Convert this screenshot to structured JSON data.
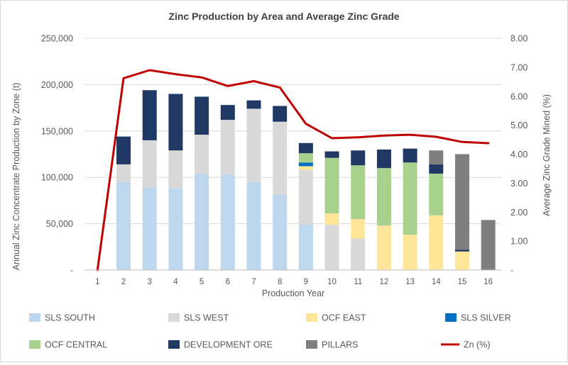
{
  "chart_data": {
    "type": "bar",
    "title": "Zinc Production by Area and Average Zinc Grade",
    "xlabel": "Production Year",
    "ylabel": "Annual Zinc Concentrate Production by Zone (t)",
    "y2label": "Average Zinc Grade Mined (%)",
    "categories": [
      "1",
      "2",
      "3",
      "4",
      "5",
      "6",
      "7",
      "8",
      "9",
      "10",
      "11",
      "12",
      "13",
      "14",
      "15",
      "16"
    ],
    "ylim": [
      0,
      250000
    ],
    "y2lim": [
      0,
      8
    ],
    "yticks": [
      "-",
      "50,000",
      "100,000",
      "150,000",
      "200,000",
      "250,000"
    ],
    "y2ticks": [
      "-",
      "1.00",
      "2.00",
      "3.00",
      "4.00",
      "5.00",
      "6.00",
      "7.00",
      "8.00"
    ],
    "grid": true,
    "legend_position": "bottom",
    "stacked": true,
    "series": [
      {
        "name": "SLS SOUTH",
        "color": "#BDD7EE",
        "values": [
          0,
          95000,
          89000,
          88000,
          104000,
          103000,
          95000,
          81000,
          49000,
          0,
          0,
          0,
          0,
          0,
          0,
          0
        ]
      },
      {
        "name": "SLS  WEST",
        "color": "#D9D9D9",
        "values": [
          0,
          19000,
          51000,
          41000,
          42000,
          59000,
          79000,
          79000,
          59000,
          49000,
          34000,
          0,
          0,
          0,
          0,
          0
        ]
      },
      {
        "name": "OCF  EAST",
        "color": "#FFE699",
        "values": [
          0,
          0,
          0,
          0,
          0,
          0,
          0,
          0,
          4000,
          12000,
          21000,
          48000,
          38000,
          59000,
          20000,
          0
        ]
      },
      {
        "name": "SLS  SILVER",
        "color": "#0070C0",
        "values": [
          0,
          0,
          0,
          0,
          0,
          0,
          0,
          0,
          4000,
          0,
          0,
          0,
          0,
          0,
          0,
          0
        ]
      },
      {
        "name": "OCF  CENTRAL",
        "color": "#A9D18E",
        "values": [
          0,
          0,
          0,
          0,
          0,
          0,
          0,
          0,
          10000,
          60000,
          58000,
          62000,
          78000,
          45000,
          0,
          0
        ]
      },
      {
        "name": "DEVELOPMENT ORE",
        "color": "#203864",
        "values": [
          0,
          30000,
          54000,
          61000,
          41000,
          16000,
          9000,
          17000,
          11000,
          7000,
          16000,
          20000,
          15000,
          10000,
          2000,
          0
        ]
      },
      {
        "name": "PILLARS",
        "color": "#7F7F7F",
        "values": [
          0,
          0,
          0,
          0,
          0,
          0,
          0,
          0,
          0,
          0,
          0,
          0,
          0,
          15000,
          103000,
          54000
        ]
      }
    ],
    "line": {
      "name": "Zn (%)",
      "color": "#C00000",
      "axis": "secondary",
      "values": [
        0,
        6.62,
        6.9,
        6.76,
        6.65,
        6.35,
        6.52,
        6.3,
        5.05,
        4.55,
        4.58,
        4.64,
        4.67,
        4.6,
        4.42,
        4.38
      ]
    }
  }
}
